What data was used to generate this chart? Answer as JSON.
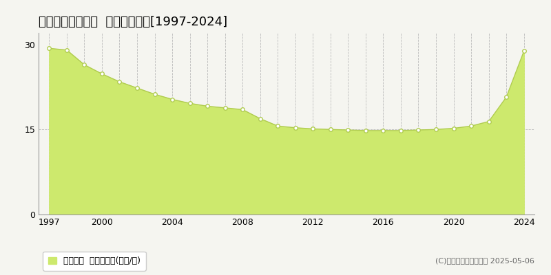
{
  "title": "江別市東野幌本町  基準地価推移[1997-2024]",
  "years": [
    1997,
    1998,
    1999,
    2000,
    2001,
    2002,
    2003,
    2004,
    2005,
    2006,
    2007,
    2008,
    2009,
    2010,
    2011,
    2012,
    2013,
    2014,
    2015,
    2016,
    2017,
    2018,
    2019,
    2020,
    2021,
    2022,
    2023,
    2024
  ],
  "values": [
    29.3,
    29.0,
    26.4,
    24.8,
    23.4,
    22.3,
    21.2,
    20.3,
    19.6,
    19.1,
    18.8,
    18.5,
    16.9,
    15.6,
    15.3,
    15.1,
    15.0,
    14.9,
    14.8,
    14.8,
    14.8,
    14.9,
    15.0,
    15.2,
    15.6,
    16.4,
    20.7,
    28.8
  ],
  "fill_color": "#cde96d",
  "line_color": "#b0cc50",
  "marker_facecolor": "#ffffff",
  "marker_edgecolor": "#b0cc50",
  "bg_color": "#f5f5f0",
  "plot_bg_color": "#f5f5f0",
  "grid_color": "#bbbbbb",
  "yticks": [
    0,
    15,
    30
  ],
  "xticks": [
    1997,
    2000,
    2004,
    2008,
    2012,
    2016,
    2020,
    2024
  ],
  "ylim": [
    0,
    32
  ],
  "xlim": [
    1996.4,
    2024.6
  ],
  "legend_label": "基準地価  平均坪単価(万円/坪)",
  "copyright_text": "(C)土地価格ドットコム 2025-05-06",
  "title_fontsize": 13,
  "tick_fontsize": 9,
  "legend_fontsize": 9,
  "copyright_fontsize": 8
}
